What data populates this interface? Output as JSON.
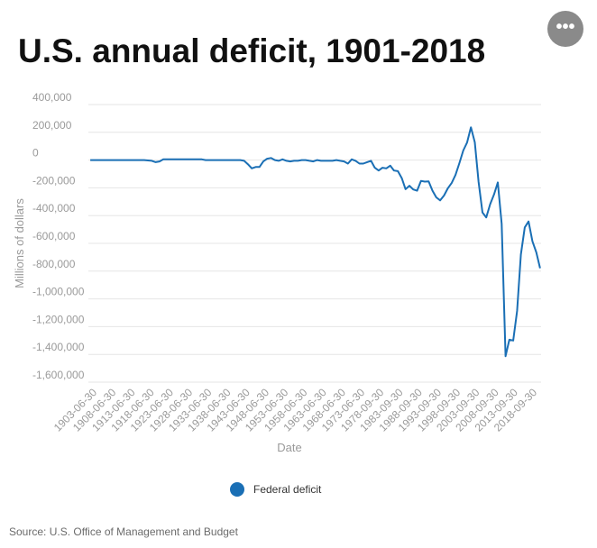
{
  "page": {
    "title": "U.S. annual deficit, 1901-2018",
    "menu_icon": "ellipsis-icon",
    "menu_glyph": "•••",
    "source": "Source: U.S. Office of Management and Budget"
  },
  "chart_data": {
    "type": "line",
    "title": "U.S. annual deficit, 1901-2018",
    "xlabel": "Date",
    "ylabel": "Millions of dollars",
    "ylim": [
      -1600000,
      400000
    ],
    "y_ticks": [
      {
        "value": 400000,
        "label": "400,000"
      },
      {
        "value": 200000,
        "label": "200,000"
      },
      {
        "value": 0,
        "label": "0"
      },
      {
        "value": -200000,
        "label": "-200,000"
      },
      {
        "value": -400000,
        "label": "-400,000"
      },
      {
        "value": -600000,
        "label": "-600,000"
      },
      {
        "value": -800000,
        "label": "-800,000"
      },
      {
        "value": -1000000,
        "label": "-1,000,000"
      },
      {
        "value": -1200000,
        "label": "-1,200,000"
      },
      {
        "value": -1400000,
        "label": "-1,400,000"
      },
      {
        "value": -1600000,
        "label": "-1,600,000"
      }
    ],
    "x_tick_labels": [
      "1903-06-30",
      "1908-06-30",
      "1913-06-30",
      "1918-06-30",
      "1923-06-30",
      "1928-06-30",
      "1933-06-30",
      "1938-06-30",
      "1943-06-30",
      "1948-06-30",
      "1953-06-30",
      "1958-06-30",
      "1963-06-30",
      "1968-06-30",
      "1973-06-30",
      "1978-09-30",
      "1983-09-30",
      "1988-09-30",
      "1993-09-30",
      "1998-09-30",
      "2003-09-30",
      "2008-09-30",
      "2013-09-30",
      "2018-09-30"
    ],
    "grid": true,
    "legend_position": "bottom",
    "series": [
      {
        "name": "Federal deficit",
        "color": "#1a6fb5",
        "x": [
          "1901",
          "1905",
          "1910",
          "1915",
          "1917",
          "1918",
          "1919",
          "1920",
          "1925",
          "1930",
          "1931",
          "1935",
          "1940",
          "1941",
          "1942",
          "1943",
          "1944",
          "1945",
          "1946",
          "1947",
          "1948",
          "1949",
          "1950",
          "1951",
          "1952",
          "1953",
          "1954",
          "1955",
          "1956",
          "1957",
          "1958",
          "1959",
          "1960",
          "1961",
          "1962",
          "1963",
          "1964",
          "1965",
          "1966",
          "1967",
          "1968",
          "1969",
          "1970",
          "1971",
          "1972",
          "1973",
          "1974",
          "1975",
          "1976",
          "1977",
          "1978",
          "1979",
          "1980",
          "1981",
          "1982",
          "1983",
          "1984",
          "1985",
          "1986",
          "1987",
          "1988",
          "1989",
          "1990",
          "1991",
          "1992",
          "1993",
          "1994",
          "1995",
          "1996",
          "1997",
          "1998",
          "1999",
          "2000",
          "2001",
          "2002",
          "2003",
          "2004",
          "2005",
          "2006",
          "2007",
          "2008",
          "2009",
          "2010",
          "2011",
          "2012",
          "2013",
          "2014",
          "2015",
          "2016",
          "2017",
          "2018"
        ],
        "values": [
          0,
          0,
          0,
          0,
          -5000,
          -15000,
          -10000,
          5000,
          5000,
          5000,
          0,
          0,
          0,
          -5000,
          -30000,
          -60000,
          -50000,
          -50000,
          -10000,
          10000,
          15000,
          0,
          -5000,
          5000,
          -5000,
          -10000,
          -5000,
          -5000,
          0,
          0,
          -5000,
          -10000,
          0,
          -5000,
          -5000,
          -5000,
          -5000,
          0,
          -5000,
          -10000,
          -25000,
          5000,
          -5000,
          -25000,
          -25000,
          -15000,
          -5000,
          -55000,
          -75000,
          -55000,
          -60000,
          -40000,
          -75000,
          -80000,
          -130000,
          -210000,
          -185000,
          -212000,
          -221000,
          -150000,
          -155000,
          -153000,
          -221000,
          -269000,
          -290000,
          -255000,
          -203000,
          -164000,
          -107000,
          -22000,
          69000,
          126000,
          236000,
          128000,
          -158000,
          -378000,
          -413000,
          -318000,
          -248000,
          -161000,
          -459000,
          -1413000,
          -1294000,
          -1300000,
          -1087000,
          -680000,
          -485000,
          -442000,
          -585000,
          -665000,
          -779000
        ]
      }
    ]
  }
}
